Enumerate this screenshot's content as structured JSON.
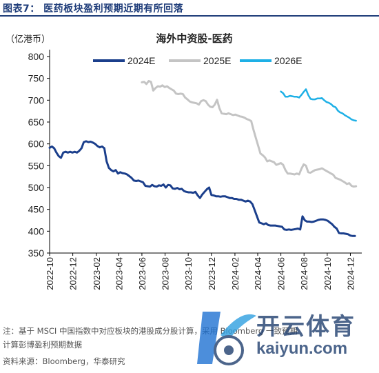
{
  "figure_title": "图表7：  医药板块盈利预期近期有所回落",
  "notes": {
    "line1": "注：基于 MSCI 中国指数中对应板块的港股成分股计算，采用 Bloomberg 一致预期",
    "line2": "计算彭博盈利预期数据",
    "source": "资料来源：Bloomberg，华泰研究"
  },
  "watermark": {
    "brand": "开云体育",
    "url": "kaiyun.com"
  },
  "colors": {
    "2024E": "#1b3f8c",
    "2025E": "#c4c4c4",
    "2026E": "#1eb0e6",
    "title_bar": "#1f3d7a"
  },
  "chart_data": {
    "type": "line",
    "title": "海外中资股-医药",
    "ylabel": "（亿港币）",
    "ylim": [
      350,
      800
    ],
    "yticks": [
      350,
      400,
      450,
      500,
      550,
      600,
      650,
      700,
      750,
      800
    ],
    "xlim": [
      "2022-10-01",
      "2024-12-31"
    ],
    "xticks": [
      "2022-10",
      "2022-12",
      "2023-02",
      "2023-04",
      "2023-06",
      "2023-08",
      "2023-10",
      "2023-12",
      "2024-02",
      "2024-04",
      "2024-06",
      "2024-08",
      "2024-10",
      "2024-12"
    ],
    "grid": false,
    "legend": "top",
    "series": [
      {
        "name": "2024E",
        "points": [
          [
            "2022-10-01",
            591
          ],
          [
            "2022-10-07",
            594
          ],
          [
            "2022-10-13",
            590
          ],
          [
            "2022-10-19",
            580
          ],
          [
            "2022-10-25",
            572
          ],
          [
            "2022-10-31",
            568
          ],
          [
            "2022-11-06",
            580
          ],
          [
            "2022-11-12",
            582
          ],
          [
            "2022-11-18",
            580
          ],
          [
            "2022-11-24",
            582
          ],
          [
            "2022-11-30",
            580
          ],
          [
            "2022-12-06",
            582
          ],
          [
            "2022-12-12",
            580
          ],
          [
            "2022-12-18",
            584
          ],
          [
            "2022-12-24",
            590
          ],
          [
            "2022-12-30",
            604
          ],
          [
            "2023-01-05",
            606
          ],
          [
            "2023-01-11",
            604
          ],
          [
            "2023-01-17",
            605
          ],
          [
            "2023-01-23",
            603
          ],
          [
            "2023-01-29",
            600
          ],
          [
            "2023-02-04",
            595
          ],
          [
            "2023-02-10",
            592
          ],
          [
            "2023-02-16",
            594
          ],
          [
            "2023-02-22",
            590
          ],
          [
            "2023-02-28",
            560
          ],
          [
            "2023-03-06",
            545
          ],
          [
            "2023-03-12",
            540
          ],
          [
            "2023-03-18",
            537
          ],
          [
            "2023-03-24",
            540
          ],
          [
            "2023-03-30",
            532
          ],
          [
            "2023-04-05",
            535
          ],
          [
            "2023-04-11",
            533
          ],
          [
            "2023-04-17",
            532
          ],
          [
            "2023-04-23",
            530
          ],
          [
            "2023-04-29",
            526
          ],
          [
            "2023-05-05",
            522
          ],
          [
            "2023-05-11",
            516
          ],
          [
            "2023-05-17",
            515
          ],
          [
            "2023-05-23",
            516
          ],
          [
            "2023-05-29",
            514
          ],
          [
            "2023-06-04",
            512
          ],
          [
            "2023-06-10",
            504
          ],
          [
            "2023-06-16",
            503
          ],
          [
            "2023-06-22",
            502
          ],
          [
            "2023-06-28",
            506
          ],
          [
            "2023-07-04",
            503
          ],
          [
            "2023-07-10",
            502
          ],
          [
            "2023-07-16",
            505
          ],
          [
            "2023-07-22",
            504
          ],
          [
            "2023-07-28",
            507
          ],
          [
            "2023-08-03",
            500
          ],
          [
            "2023-08-09",
            506
          ],
          [
            "2023-08-15",
            505
          ],
          [
            "2023-08-21",
            498
          ],
          [
            "2023-08-27",
            497
          ],
          [
            "2023-09-02",
            499
          ],
          [
            "2023-09-08",
            496
          ],
          [
            "2023-09-14",
            497
          ],
          [
            "2023-09-20",
            492
          ],
          [
            "2023-09-26",
            490
          ],
          [
            "2023-10-02",
            489
          ],
          [
            "2023-10-08",
            489
          ],
          [
            "2023-10-14",
            488
          ],
          [
            "2023-10-20",
            490
          ],
          [
            "2023-10-26",
            482
          ],
          [
            "2023-11-01",
            476
          ],
          [
            "2023-11-07",
            484
          ],
          [
            "2023-11-13",
            490
          ],
          [
            "2023-11-19",
            496
          ],
          [
            "2023-11-25",
            500
          ],
          [
            "2023-12-01",
            483
          ],
          [
            "2023-12-07",
            482
          ],
          [
            "2023-12-13",
            480
          ],
          [
            "2023-12-19",
            480
          ],
          [
            "2023-12-25",
            479
          ],
          [
            "2023-12-31",
            480
          ],
          [
            "2024-01-06",
            480
          ],
          [
            "2024-01-12",
            478
          ],
          [
            "2024-01-18",
            476
          ],
          [
            "2024-01-24",
            476
          ],
          [
            "2024-01-30",
            474
          ],
          [
            "2024-02-05",
            474
          ],
          [
            "2024-02-11",
            472
          ],
          [
            "2024-02-17",
            472
          ],
          [
            "2024-02-23",
            470
          ],
          [
            "2024-02-29",
            468
          ],
          [
            "2024-03-06",
            470
          ],
          [
            "2024-03-12",
            468
          ],
          [
            "2024-03-18",
            462
          ],
          [
            "2024-03-24",
            448
          ],
          [
            "2024-03-30",
            434
          ],
          [
            "2024-04-05",
            420
          ],
          [
            "2024-04-11",
            418
          ],
          [
            "2024-04-17",
            416
          ],
          [
            "2024-04-23",
            418
          ],
          [
            "2024-04-29",
            414
          ],
          [
            "2024-05-05",
            413
          ],
          [
            "2024-05-11",
            413
          ],
          [
            "2024-05-17",
            413
          ],
          [
            "2024-05-23",
            412
          ],
          [
            "2024-05-29",
            411
          ],
          [
            "2024-06-04",
            410
          ],
          [
            "2024-06-10",
            404
          ],
          [
            "2024-06-16",
            403
          ],
          [
            "2024-06-22",
            404
          ],
          [
            "2024-06-28",
            403
          ],
          [
            "2024-07-04",
            404
          ],
          [
            "2024-07-10",
            405
          ],
          [
            "2024-07-16",
            406
          ],
          [
            "2024-07-22",
            404
          ],
          [
            "2024-07-28",
            434
          ],
          [
            "2024-08-03",
            425
          ],
          [
            "2024-08-09",
            422
          ],
          [
            "2024-08-15",
            422
          ],
          [
            "2024-08-21",
            421
          ],
          [
            "2024-08-27",
            422
          ],
          [
            "2024-09-02",
            424
          ],
          [
            "2024-09-08",
            426
          ],
          [
            "2024-09-14",
            427
          ],
          [
            "2024-09-20",
            427
          ],
          [
            "2024-09-26",
            426
          ],
          [
            "2024-10-02",
            424
          ],
          [
            "2024-10-08",
            420
          ],
          [
            "2024-10-14",
            416
          ],
          [
            "2024-10-20",
            410
          ],
          [
            "2024-10-26",
            406
          ],
          [
            "2024-11-01",
            396
          ],
          [
            "2024-11-07",
            395
          ],
          [
            "2024-11-13",
            395
          ],
          [
            "2024-11-19",
            394
          ],
          [
            "2024-11-25",
            393
          ],
          [
            "2024-12-01",
            390
          ],
          [
            "2024-12-07",
            389
          ],
          [
            "2024-12-13",
            389
          ]
        ]
      },
      {
        "name": "2025E",
        "points": [
          [
            "2023-06-01",
            741
          ],
          [
            "2023-06-07",
            742
          ],
          [
            "2023-06-13",
            737
          ],
          [
            "2023-06-19",
            744
          ],
          [
            "2023-06-25",
            742
          ],
          [
            "2023-07-01",
            722
          ],
          [
            "2023-07-07",
            728
          ],
          [
            "2023-07-13",
            732
          ],
          [
            "2023-07-19",
            731
          ],
          [
            "2023-07-25",
            734
          ],
          [
            "2023-07-31",
            730
          ],
          [
            "2023-08-06",
            732
          ],
          [
            "2023-08-12",
            728
          ],
          [
            "2023-08-18",
            725
          ],
          [
            "2023-08-24",
            722
          ],
          [
            "2023-08-30",
            715
          ],
          [
            "2023-09-05",
            714
          ],
          [
            "2023-09-11",
            715
          ],
          [
            "2023-09-17",
            714
          ],
          [
            "2023-09-23",
            706
          ],
          [
            "2023-09-29",
            702
          ],
          [
            "2023-10-05",
            697
          ],
          [
            "2023-10-11",
            695
          ],
          [
            "2023-10-17",
            694
          ],
          [
            "2023-10-23",
            693
          ],
          [
            "2023-10-29",
            690
          ],
          [
            "2023-11-04",
            698
          ],
          [
            "2023-11-10",
            700
          ],
          [
            "2023-11-16",
            698
          ],
          [
            "2023-11-22",
            690
          ],
          [
            "2023-11-28",
            685
          ],
          [
            "2023-12-04",
            684
          ],
          [
            "2023-12-10",
            690
          ],
          [
            "2023-12-16",
            701
          ],
          [
            "2023-12-22",
            682
          ],
          [
            "2023-12-28",
            670
          ],
          [
            "2024-01-03",
            669
          ],
          [
            "2024-01-09",
            668
          ],
          [
            "2024-01-15",
            670
          ],
          [
            "2024-01-21",
            668
          ],
          [
            "2024-01-27",
            666
          ],
          [
            "2024-02-02",
            667
          ],
          [
            "2024-02-08",
            665
          ],
          [
            "2024-02-14",
            663
          ],
          [
            "2024-02-20",
            662
          ],
          [
            "2024-02-26",
            660
          ],
          [
            "2024-03-03",
            657
          ],
          [
            "2024-03-09",
            655
          ],
          [
            "2024-03-15",
            652
          ],
          [
            "2024-03-21",
            632
          ],
          [
            "2024-03-27",
            614
          ],
          [
            "2024-04-02",
            596
          ],
          [
            "2024-04-08",
            578
          ],
          [
            "2024-04-14",
            574
          ],
          [
            "2024-04-20",
            569
          ],
          [
            "2024-04-26",
            560
          ],
          [
            "2024-05-02",
            562
          ],
          [
            "2024-05-08",
            560
          ],
          [
            "2024-05-14",
            558
          ],
          [
            "2024-05-20",
            552
          ],
          [
            "2024-05-26",
            554
          ],
          [
            "2024-06-01",
            556
          ],
          [
            "2024-06-07",
            552
          ],
          [
            "2024-06-13",
            540
          ],
          [
            "2024-06-19",
            532
          ],
          [
            "2024-06-25",
            532
          ],
          [
            "2024-07-01",
            531
          ],
          [
            "2024-07-07",
            530
          ],
          [
            "2024-07-13",
            532
          ],
          [
            "2024-07-19",
            530
          ],
          [
            "2024-07-25",
            543
          ],
          [
            "2024-07-31",
            553
          ],
          [
            "2024-08-06",
            550
          ],
          [
            "2024-08-12",
            535
          ],
          [
            "2024-08-18",
            534
          ],
          [
            "2024-08-24",
            537
          ],
          [
            "2024-08-30",
            540
          ],
          [
            "2024-09-05",
            541
          ],
          [
            "2024-09-11",
            542
          ],
          [
            "2024-09-17",
            544
          ],
          [
            "2024-09-23",
            541
          ],
          [
            "2024-09-29",
            538
          ],
          [
            "2024-10-05",
            535
          ],
          [
            "2024-10-11",
            532
          ],
          [
            "2024-10-17",
            529
          ],
          [
            "2024-10-23",
            522
          ],
          [
            "2024-10-29",
            520
          ],
          [
            "2024-11-04",
            518
          ],
          [
            "2024-11-10",
            515
          ],
          [
            "2024-11-16",
            512
          ],
          [
            "2024-11-22",
            508
          ],
          [
            "2024-11-28",
            510
          ],
          [
            "2024-12-04",
            504
          ],
          [
            "2024-12-10",
            502
          ],
          [
            "2024-12-16",
            503
          ]
        ]
      },
      {
        "name": "2026E",
        "points": [
          [
            "2024-06-01",
            720
          ],
          [
            "2024-06-07",
            716
          ],
          [
            "2024-06-13",
            708
          ],
          [
            "2024-06-19",
            708
          ],
          [
            "2024-06-25",
            710
          ],
          [
            "2024-07-01",
            709
          ],
          [
            "2024-07-07",
            708
          ],
          [
            "2024-07-13",
            708
          ],
          [
            "2024-07-19",
            706
          ],
          [
            "2024-07-25",
            712
          ],
          [
            "2024-07-31",
            719
          ],
          [
            "2024-08-06",
            725
          ],
          [
            "2024-08-12",
            712
          ],
          [
            "2024-08-18",
            703
          ],
          [
            "2024-08-24",
            702
          ],
          [
            "2024-08-30",
            702
          ],
          [
            "2024-09-05",
            704
          ],
          [
            "2024-09-11",
            704
          ],
          [
            "2024-09-17",
            705
          ],
          [
            "2024-09-23",
            700
          ],
          [
            "2024-09-29",
            696
          ],
          [
            "2024-10-05",
            694
          ],
          [
            "2024-10-11",
            691
          ],
          [
            "2024-10-17",
            686
          ],
          [
            "2024-10-23",
            684
          ],
          [
            "2024-10-29",
            676
          ],
          [
            "2024-11-04",
            672
          ],
          [
            "2024-11-10",
            670
          ],
          [
            "2024-11-16",
            666
          ],
          [
            "2024-11-22",
            663
          ],
          [
            "2024-11-28",
            660
          ],
          [
            "2024-12-04",
            656
          ],
          [
            "2024-12-10",
            654
          ],
          [
            "2024-12-16",
            653
          ]
        ]
      }
    ]
  }
}
